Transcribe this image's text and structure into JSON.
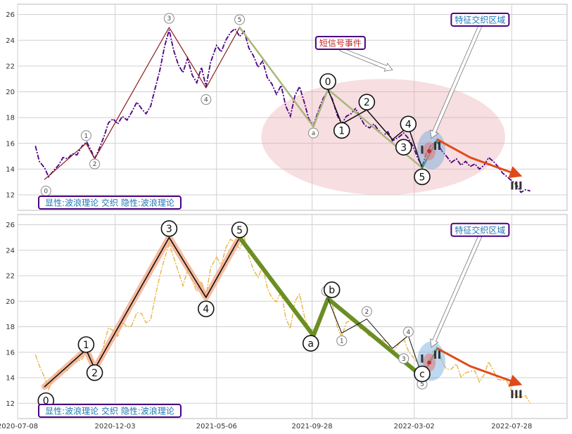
{
  "chart_data": [
    {
      "type": "line",
      "panel": "top",
      "ylim": [
        10.8,
        26.8
      ],
      "yticks": [
        12,
        14,
        16,
        18,
        20,
        22,
        24,
        26
      ],
      "xlim": [
        "2020-07-08",
        "2022-10-20"
      ],
      "xticks": [
        "2020-07-08",
        "2020-12-03",
        "2021-05-06",
        "2021-09-28",
        "2022-03-02",
        "2022-07-28"
      ],
      "grid": true,
      "price_color": "#4b0082",
      "price": [
        [
          "2020-08-04",
          15.8
        ],
        [
          "2020-08-10",
          14.6
        ],
        [
          "2020-08-18",
          14.1
        ],
        [
          "2020-08-24",
          13.4
        ],
        [
          "2020-09-01",
          13.9
        ],
        [
          "2020-09-08",
          14.3
        ],
        [
          "2020-09-15",
          14.9
        ],
        [
          "2020-09-22",
          14.8
        ],
        [
          "2020-09-29",
          15.2
        ],
        [
          "2020-10-06",
          15.1
        ],
        [
          "2020-10-14",
          15.8
        ],
        [
          "2020-10-21",
          16.1
        ],
        [
          "2020-10-28",
          15.4
        ],
        [
          "2020-11-02",
          14.8
        ],
        [
          "2020-11-09",
          15.6
        ],
        [
          "2020-11-16",
          16.5
        ],
        [
          "2020-11-23",
          17.6
        ],
        [
          "2020-11-30",
          17.9
        ],
        [
          "2020-12-07",
          17.5
        ],
        [
          "2020-12-14",
          18.1
        ],
        [
          "2020-12-21",
          17.8
        ],
        [
          "2020-12-28",
          18.4
        ],
        [
          "2021-01-05",
          19.2
        ],
        [
          "2021-01-12",
          18.7
        ],
        [
          "2021-01-19",
          18.3
        ],
        [
          "2021-01-26",
          18.9
        ],
        [
          "2021-02-02",
          20.3
        ],
        [
          "2021-02-09",
          21.7
        ],
        [
          "2021-02-16",
          23.5
        ],
        [
          "2021-02-23",
          24.8
        ],
        [
          "2021-03-02",
          23.2
        ],
        [
          "2021-03-09",
          22.1
        ],
        [
          "2021-03-16",
          21.5
        ],
        [
          "2021-03-23",
          22.6
        ],
        [
          "2021-03-30",
          21.3
        ],
        [
          "2021-04-06",
          20.7
        ],
        [
          "2021-04-13",
          21.9
        ],
        [
          "2021-04-20",
          20.4
        ],
        [
          "2021-04-27",
          22.3
        ],
        [
          "2021-05-06",
          23.6
        ],
        [
          "2021-05-13",
          23.1
        ],
        [
          "2021-05-20",
          24.0
        ],
        [
          "2021-05-27",
          24.6
        ],
        [
          "2021-06-03",
          24.9
        ],
        [
          "2021-06-10",
          24.3
        ],
        [
          "2021-06-17",
          24.7
        ],
        [
          "2021-06-24",
          23.4
        ],
        [
          "2021-07-01",
          22.8
        ],
        [
          "2021-07-08",
          21.9
        ],
        [
          "2021-07-15",
          22.4
        ],
        [
          "2021-07-22",
          21.1
        ],
        [
          "2021-07-29",
          20.6
        ],
        [
          "2021-08-05",
          19.8
        ],
        [
          "2021-08-12",
          20.5
        ],
        [
          "2021-08-19",
          18.9
        ],
        [
          "2021-08-26",
          18.1
        ],
        [
          "2021-09-02",
          19.7
        ],
        [
          "2021-09-09",
          20.4
        ],
        [
          "2021-09-16",
          19.2
        ],
        [
          "2021-09-23",
          17.9
        ],
        [
          "2021-09-30",
          17.4
        ],
        [
          "2021-10-08",
          18.6
        ],
        [
          "2021-10-15",
          19.5
        ],
        [
          "2021-10-22",
          20.1
        ],
        [
          "2021-10-29",
          19.4
        ],
        [
          "2021-11-05",
          18.2
        ],
        [
          "2021-11-12",
          17.5
        ],
        [
          "2021-11-19",
          18.1
        ],
        [
          "2021-11-26",
          18.3
        ],
        [
          "2021-12-03",
          18.7
        ],
        [
          "2021-12-10",
          18.0
        ],
        [
          "2021-12-17",
          17.4
        ],
        [
          "2021-12-24",
          17.2
        ],
        [
          "2021-12-31",
          17.5
        ],
        [
          "2022-01-07",
          17.0
        ],
        [
          "2022-01-14",
          16.6
        ],
        [
          "2022-01-21",
          16.9
        ],
        [
          "2022-01-28",
          16.2
        ],
        [
          "2022-02-07",
          16.5
        ],
        [
          "2022-02-14",
          16.8
        ],
        [
          "2022-02-21",
          16.4
        ],
        [
          "2022-02-28",
          15.8
        ],
        [
          "2022-03-07",
          14.9
        ],
        [
          "2022-03-14",
          14.2
        ],
        [
          "2022-03-21",
          15.3
        ],
        [
          "2022-03-28",
          15.9
        ],
        [
          "2022-04-06",
          16.1
        ],
        [
          "2022-04-13",
          15.4
        ],
        [
          "2022-04-20",
          15.0
        ],
        [
          "2022-04-27",
          14.5
        ],
        [
          "2022-05-05",
          14.8
        ],
        [
          "2022-05-12",
          14.3
        ],
        [
          "2022-05-19",
          14.6
        ],
        [
          "2022-05-26",
          14.2
        ],
        [
          "2022-06-02",
          14.4
        ],
        [
          "2022-06-09",
          14.0
        ],
        [
          "2022-06-16",
          14.3
        ],
        [
          "2022-06-23",
          14.9
        ],
        [
          "2022-06-30",
          14.6
        ],
        [
          "2022-07-07",
          14.2
        ],
        [
          "2022-07-14",
          13.7
        ],
        [
          "2022-07-21",
          13.4
        ],
        [
          "2022-07-28",
          13.1
        ],
        [
          "2022-08-04",
          12.8
        ],
        [
          "2022-08-11",
          12.2
        ],
        [
          "2022-08-18",
          12.4
        ],
        [
          "2022-08-25",
          12.3
        ]
      ],
      "wave_lines": [
        {
          "color": "#8b1a1a",
          "width": 1.2,
          "points": [
            [
              "2020-08-18",
              13.2
            ],
            [
              "2020-10-20",
              16.0
            ],
            [
              "2020-11-02",
              14.8
            ],
            [
              "2021-02-23",
              25.0
            ],
            [
              "2021-04-20",
              20.3
            ],
            [
              "2021-06-10",
              25.0
            ]
          ]
        },
        {
          "color": "#a9b77a",
          "width": 2.5,
          "points": [
            [
              "2021-06-10",
              25.0
            ],
            [
              "2021-09-30",
              17.3
            ],
            [
              "2021-10-22",
              20.2
            ],
            [
              "2022-03-14",
              14.1
            ]
          ]
        },
        {
          "color": "#111111",
          "width": 1.5,
          "points": [
            [
              "2021-10-22",
              20.2
            ],
            [
              "2021-11-12",
              17.5
            ],
            [
              "2021-12-20",
              18.6
            ],
            [
              "2022-01-28",
              16.3
            ],
            [
              "2022-02-21",
              17.3
            ],
            [
              "2022-03-14",
              14.1
            ]
          ]
        },
        {
          "color": "#2e8b57",
          "width": 2.5,
          "points": [
            [
              "2022-03-14",
              14.1
            ],
            [
              "2022-04-06",
              16.3
            ]
          ]
        }
      ],
      "arrow": {
        "color": "#e04a1a",
        "from": [
          "2022-04-06",
          16.3
        ],
        "mid": [
          "2022-05-26",
          14.9
        ],
        "to": [
          "2022-08-04",
          13.6
        ]
      },
      "small_labels": [
        {
          "text": "0",
          "x": "2020-08-20",
          "y": 12.3
        },
        {
          "text": "1",
          "x": "2020-10-20",
          "y": 16.6
        },
        {
          "text": "2",
          "x": "2020-11-02",
          "y": 14.4
        },
        {
          "text": "3",
          "x": "2021-02-23",
          "y": 25.7
        },
        {
          "text": "4",
          "x": "2021-04-20",
          "y": 19.4
        },
        {
          "text": "5",
          "x": "2021-06-10",
          "y": 25.6
        },
        {
          "text": "a",
          "x": "2021-09-30",
          "y": 16.8
        },
        {
          "text": "b",
          "x": "2021-10-25",
          "y": 20.8
        },
        {
          "text": "5",
          "x": "2022-03-14",
          "y": 13.5
        },
        {
          "text": "3",
          "x": "2022-02-14",
          "y": 15.5
        }
      ],
      "big_labels": [
        {
          "text": "0",
          "x": "2021-10-22",
          "y": 20.8
        },
        {
          "text": "1",
          "x": "2021-11-12",
          "y": 17.0
        },
        {
          "text": "2",
          "x": "2021-12-20",
          "y": 19.2
        },
        {
          "text": "3",
          "x": "2022-02-14",
          "y": 15.7
        },
        {
          "text": "4",
          "x": "2022-02-21",
          "y": 17.5
        },
        {
          "text": "5",
          "x": "2022-03-14",
          "y": 13.4
        }
      ],
      "roman_labels": [
        {
          "text": "I",
          "x": "2022-03-14",
          "y": 15.2
        },
        {
          "text": "II",
          "x": "2022-04-06",
          "y": 15.5
        },
        {
          "text": "III",
          "x": "2022-08-04",
          "y": 12.4
        }
      ],
      "event_ellipse": {
        "cx": "2022-01-14",
        "cy": 16.5,
        "rx_days": 185,
        "ry": 4.5,
        "color": "#e8a0a8"
      },
      "zone_marker": {
        "x": "2022-03-28",
        "y": 15.5,
        "color": "#6fa8dc"
      },
      "box_signal": {
        "text": "短信号事件",
        "x": "2021-11-10",
        "y": 23.8,
        "color": "#c62828",
        "border": "#4b0082",
        "arrow_to": [
          "2022-01-28",
          21.7
        ]
      },
      "box_zone": {
        "text": "特征交织区域",
        "x": "2022-06-10",
        "y": 25.6,
        "color": "#1f77b4",
        "border": "#4b0082",
        "arrow_to": [
          "2022-03-28",
          16.4
        ]
      },
      "caption": "显性:波浪理论 交织 隐性:波浪理论"
    },
    {
      "type": "line",
      "panel": "bottom",
      "ylim": [
        10.8,
        26.8
      ],
      "yticks": [
        12,
        14,
        16,
        18,
        20,
        22,
        24,
        26
      ],
      "xlim": [
        "2020-07-08",
        "2022-10-20"
      ],
      "xticks": [
        "2020-07-08",
        "2020-12-03",
        "2021-05-06",
        "2021-09-28",
        "2022-03-02",
        "2022-07-28"
      ],
      "grid": true,
      "price_color": "#e8b440",
      "wave_lines": [
        {
          "color": "#f4a582",
          "width": 9,
          "opacity": 0.75,
          "points": [
            [
              "2020-08-18",
              13.3
            ],
            [
              "2020-10-20",
              16.2
            ],
            [
              "2020-11-02",
              14.7
            ],
            [
              "2021-02-23",
              25.0
            ],
            [
              "2021-04-20",
              20.3
            ],
            [
              "2021-06-10",
              25.0
            ]
          ]
        },
        {
          "color": "#111111",
          "width": 1.6,
          "points": [
            [
              "2020-08-18",
              13.3
            ],
            [
              "2020-10-20",
              16.2
            ],
            [
              "2020-11-02",
              14.7
            ],
            [
              "2021-02-23",
              25.0
            ],
            [
              "2021-04-20",
              20.3
            ],
            [
              "2021-06-10",
              25.0
            ]
          ]
        },
        {
          "color": "#6b8e23",
          "width": 6,
          "points": [
            [
              "2021-06-10",
              25.0
            ],
            [
              "2021-09-30",
              17.3
            ],
            [
              "2021-10-22",
              20.2
            ],
            [
              "2022-03-14",
              14.1
            ]
          ]
        },
        {
          "color": "#111111",
          "width": 1,
          "points": [
            [
              "2021-10-22",
              20.2
            ],
            [
              "2021-11-12",
              17.5
            ],
            [
              "2021-12-20",
              18.6
            ],
            [
              "2022-01-28",
              16.3
            ],
            [
              "2022-02-21",
              17.3
            ],
            [
              "2022-03-14",
              14.1
            ]
          ]
        },
        {
          "color": "#2e8b57",
          "width": 2.5,
          "points": [
            [
              "2022-03-14",
              14.1
            ],
            [
              "2022-04-06",
              16.3
            ]
          ]
        }
      ],
      "arrow": {
        "color": "#e04a1a",
        "from": [
          "2022-04-06",
          16.3
        ],
        "mid": [
          "2022-05-26",
          14.9
        ],
        "to": [
          "2022-08-04",
          13.6
        ]
      },
      "big_labels": [
        {
          "text": "0",
          "x": "2020-08-20",
          "y": 12.2
        },
        {
          "text": "1",
          "x": "2020-10-20",
          "y": 16.6
        },
        {
          "text": "2",
          "x": "2020-11-02",
          "y": 14.4
        },
        {
          "text": "3",
          "x": "2021-02-23",
          "y": 25.7
        },
        {
          "text": "4",
          "x": "2021-04-20",
          "y": 19.4
        },
        {
          "text": "5",
          "x": "2021-06-10",
          "y": 25.6
        },
        {
          "text": "a",
          "x": "2021-09-26",
          "y": 16.7
        },
        {
          "text": "b",
          "x": "2021-10-28",
          "y": 20.9
        },
        {
          "text": "c",
          "x": "2022-03-14",
          "y": 14.3
        }
      ],
      "small_labels": [
        {
          "text": "1",
          "x": "2021-11-12",
          "y": 16.9
        },
        {
          "text": "2",
          "x": "2021-12-20",
          "y": 19.2
        },
        {
          "text": "3",
          "x": "2022-02-14",
          "y": 15.5
        },
        {
          "text": "4",
          "x": "2022-02-21",
          "y": 17.6
        },
        {
          "text": "5",
          "x": "2022-03-14",
          "y": 13.5
        },
        {
          "text": "0",
          "x": "2021-10-20",
          "y": 20.8
        }
      ],
      "roman_labels": [
        {
          "text": "I",
          "x": "2022-03-14",
          "y": 15.2
        },
        {
          "text": "II",
          "x": "2022-04-06",
          "y": 15.5
        },
        {
          "text": "III",
          "x": "2022-08-04",
          "y": 12.4
        }
      ],
      "zone_marker": {
        "x": "2022-03-28",
        "y": 15.3,
        "color": "#6fa8dc"
      },
      "box_zone": {
        "text": "特征交织区域",
        "x": "2022-06-10",
        "y": 25.6,
        "color": "#1f77b4",
        "border": "#4b0082",
        "arrow_to": [
          "2022-03-28",
          16.4
        ]
      },
      "caption": "显性:波浪理论 交织 隐性:波浪理论"
    }
  ]
}
